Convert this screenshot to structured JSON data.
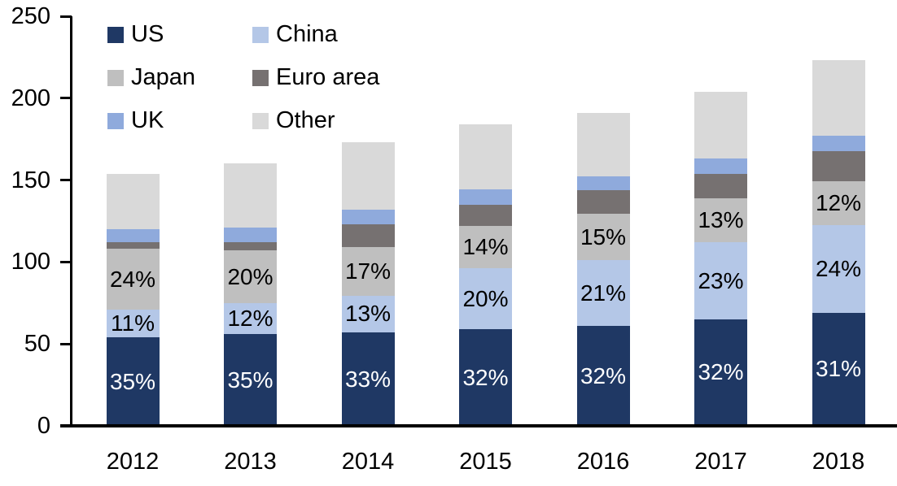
{
  "chart_data": {
    "type": "bar",
    "stacked": true,
    "title": "",
    "xlabel": "",
    "ylabel": "",
    "categories": [
      "2012",
      "2013",
      "2014",
      "2015",
      "2016",
      "2017",
      "2018"
    ],
    "series": [
      {
        "name": "US",
        "color": "#1F3864",
        "values": [
          54,
          56,
          57,
          59,
          61,
          65,
          69
        ],
        "labels": [
          "35%",
          "35%",
          "33%",
          "32%",
          "32%",
          "32%",
          "31%"
        ],
        "label_color": "#FFFFFF"
      },
      {
        "name": "China",
        "color": "#B4C7E7",
        "values": [
          17,
          19,
          22.5,
          37,
          40,
          47,
          53.5
        ],
        "labels": [
          "11%",
          "12%",
          "13%",
          "20%",
          "21%",
          "23%",
          "24%"
        ],
        "label_color": "#000000"
      },
      {
        "name": "Japan",
        "color": "#BFBFBF",
        "values": [
          37,
          32,
          29.5,
          26,
          28.5,
          27,
          27
        ],
        "labels": [
          "24%",
          "20%",
          "17%",
          "14%",
          "15%",
          "13%",
          "12%"
        ],
        "label_color": "#000000"
      },
      {
        "name": "Euro area",
        "color": "#767171",
        "values": [
          4,
          5,
          14,
          13,
          14.5,
          15,
          18
        ],
        "labels": null,
        "label_color": null
      },
      {
        "name": "UK",
        "color": "#8FAADC",
        "values": [
          8,
          9,
          9,
          9.5,
          8.5,
          9,
          9.5
        ],
        "labels": null,
        "label_color": null
      },
      {
        "name": "Other",
        "color": "#D9D9D9",
        "values": [
          34,
          39,
          41,
          39.5,
          38.5,
          41,
          46
        ],
        "labels": null,
        "label_color": null
      }
    ],
    "totals_estimated": [
      154,
      160,
      173,
      184,
      191,
      204,
      223
    ],
    "ylim": [
      0,
      250
    ],
    "yticks": [
      0,
      50,
      100,
      150,
      200,
      250
    ],
    "grid": false,
    "legend_position": "top-left",
    "axis_color": "#000000"
  }
}
